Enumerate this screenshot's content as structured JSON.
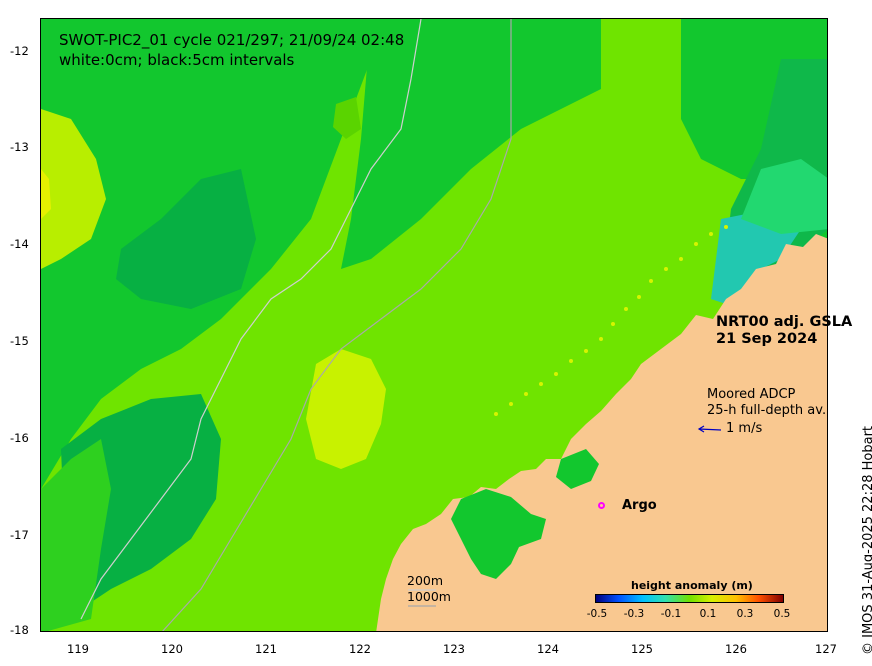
{
  "map": {
    "title": "SWOT-PIC2_01 cycle 021/297; 21/09/24 02:48",
    "subtitle": "white:0cm; black:5cm intervals",
    "product": "NRT00 adj. GSLA",
    "date": "21 Sep 2024",
    "adcp_title": "Moored ADCP",
    "adcp_subtitle": "25-h full-depth av.",
    "adcp_scale": "1 m/s",
    "argo_label": "Argo",
    "isobath_200": "200m",
    "isobath_1000": "1000m",
    "credit": "© IMOS 31-Aug-2025 22:28 Hobart",
    "x_ticks": [
      "119",
      "120",
      "121",
      "122",
      "123",
      "124",
      "125",
      "126",
      "127"
    ],
    "y_ticks": [
      "-12",
      "-13",
      "-14",
      "-15",
      "-16",
      "-17",
      "-18"
    ],
    "colors": {
      "land": "#f9c890",
      "ocean_base": "#6fe400",
      "argo": "#ff00ff",
      "adcp_arrow": "#0000c0"
    }
  },
  "colorbar": {
    "title": "height anomaly (m)",
    "ticks": [
      "-0.5",
      "-0.3",
      "-0.1",
      "0.1",
      "0.3",
      "0.5"
    ],
    "range": [
      -0.5,
      0.5
    ]
  }
}
